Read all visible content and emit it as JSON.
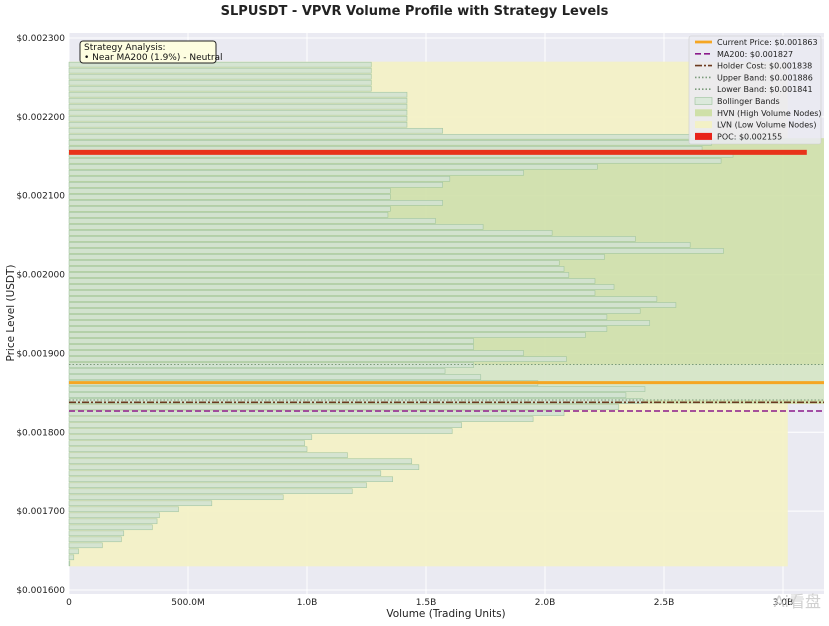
{
  "watermark": "Ai看盘",
  "chart_data": {
    "type": "bar",
    "orientation": "horizontal",
    "title": "SLPUSDT - VPVR Volume Profile with Strategy Levels",
    "xlabel": "Volume (Trading Units)",
    "ylabel": "Price Level (USDT)",
    "xlim": [
      0,
      3.25
    ],
    "ylim": [
      0.0016,
      0.0023
    ],
    "x_ticks": [
      {
        "value": 0,
        "label": "0"
      },
      {
        "value": 0.5,
        "label": "500.0M"
      },
      {
        "value": 1.0,
        "label": "1.0B"
      },
      {
        "value": 1.5,
        "label": "1.5B"
      },
      {
        "value": 2.0,
        "label": "2.0B"
      },
      {
        "value": 2.5,
        "label": "2.5B"
      },
      {
        "value": 3.0,
        "label": "3.0B"
      }
    ],
    "y_ticks": [
      {
        "value": 0.0016,
        "label": "$0.001600"
      },
      {
        "value": 0.0017,
        "label": "$0.001700"
      },
      {
        "value": 0.0018,
        "label": "$0.001800"
      },
      {
        "value": 0.0019,
        "label": "$0.001900"
      },
      {
        "value": 0.002,
        "label": "$0.002000"
      },
      {
        "value": 0.0021,
        "label": "$0.002100"
      },
      {
        "value": 0.0022,
        "label": "$0.002200"
      },
      {
        "value": 0.0023,
        "label": "$0.002300"
      }
    ],
    "units": "volume in billions",
    "price_bin_low": 0.00163,
    "price_bin_high": 0.00227,
    "volumes_bottom_to_top": [
      0.0,
      0.02,
      0.04,
      0.14,
      0.22,
      0.23,
      0.35,
      0.37,
      0.38,
      0.46,
      0.6,
      0.9,
      1.19,
      1.25,
      1.36,
      1.31,
      1.47,
      1.44,
      1.17,
      1.0,
      0.99,
      1.02,
      1.61,
      1.65,
      1.95,
      2.08,
      2.31,
      2.41,
      2.34,
      2.42,
      1.97,
      1.73,
      1.58,
      1.7,
      2.09,
      1.91,
      1.7,
      1.7,
      2.17,
      2.26,
      2.44,
      2.26,
      2.4,
      2.55,
      2.47,
      2.21,
      2.29,
      2.21,
      2.1,
      2.08,
      2.06,
      2.25,
      2.75,
      2.61,
      2.38,
      2.03,
      1.74,
      1.54,
      1.34,
      1.35,
      1.57,
      1.35,
      1.35,
      1.57,
      1.6,
      1.91,
      2.22,
      2.74,
      2.79,
      2.66,
      2.7,
      2.61,
      1.57,
      1.42,
      1.42,
      1.42,
      1.42,
      1.42,
      1.42,
      1.27,
      1.27,
      1.27,
      1.27,
      1.27
    ],
    "levels": {
      "current_price": 0.001863,
      "ma200": 0.001827,
      "holder_cost": 0.001838,
      "upper_band": 0.001886,
      "lower_band": 0.001841,
      "poc": 0.002155
    },
    "hvn_range": [
      0.001836,
      0.002173
    ],
    "lvn_ranges": [
      [
        0.00163,
        0.001836
      ],
      [
        0.002173,
        0.00227
      ]
    ],
    "legend_position": "top-right",
    "legend": [
      {
        "label": "Current Price: $0.001863",
        "kind": "line",
        "color": "#f5a623",
        "dash": ""
      },
      {
        "label": "MA200: $0.001827",
        "kind": "line",
        "color": "#8b1a8b",
        "dash": "6,3"
      },
      {
        "label": "Holder Cost: $0.001838",
        "kind": "line",
        "color": "#6b3a1f",
        "dash": "7,2,2,2"
      },
      {
        "label": "Upper Band: $0.001886",
        "kind": "line",
        "color": "#7a9a7a",
        "dash": "1.5,2"
      },
      {
        "label": "Lower Band: $0.001841",
        "kind": "line",
        "color": "#7a9a7a",
        "dash": "1.5,2"
      },
      {
        "label": "Bollinger Bands",
        "kind": "patch",
        "color": "#dbe9db"
      },
      {
        "label": "HVN (High Volume Nodes)",
        "kind": "patch",
        "color": "#cfe0a8"
      },
      {
        "label": "LVN (Low Volume Nodes)",
        "kind": "patch",
        "color": "#f3f1c6"
      },
      {
        "label": "POC: $0.002155",
        "kind": "patch",
        "color": "#e8231a"
      }
    ],
    "annotation": {
      "title": "Strategy Analysis:",
      "lines": [
        "• Near MA200 (1.9%) - Neutral"
      ]
    },
    "colors": {
      "plot_bg": "#eaeaf2",
      "bar_fill": "#d2e3d2",
      "bar_edge": "#9cc29c",
      "lvn_band": "#f3f1c6",
      "hvn_band": "#cfe0a8",
      "poc": "#e8331a",
      "current_price": "#f5a623",
      "ma200": "#8b1a8b",
      "holder_cost": "#6b3a1f",
      "bands": "#7a9a7a",
      "annotation_bg": "#fdfde0"
    }
  }
}
